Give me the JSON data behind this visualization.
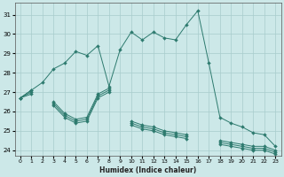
{
  "xlabel": "Humidex (Indice chaleur)",
  "background_color": "#cce8e8",
  "grid_color": "#a8cccc",
  "line_color": "#2d7a6e",
  "x_ticks": [
    0,
    1,
    2,
    3,
    4,
    5,
    6,
    7,
    8,
    9,
    10,
    11,
    12,
    13,
    14,
    15,
    16,
    17,
    18,
    19,
    20,
    21,
    22,
    23
  ],
  "y_ticks": [
    24,
    25,
    26,
    27,
    28,
    29,
    30,
    31
  ],
  "xlim": [
    -0.5,
    23.5
  ],
  "ylim": [
    23.7,
    31.6
  ],
  "series": [
    [
      26.7,
      27.1,
      27.5,
      28.2,
      28.5,
      29.1,
      28.9,
      29.4,
      27.3,
      29.2,
      30.1,
      29.7,
      30.1,
      29.8,
      29.7,
      30.5,
      31.2,
      28.5,
      25.7,
      25.4,
      25.2,
      24.9,
      24.8,
      24.2
    ],
    [
      26.7,
      27.1,
      null,
      26.5,
      25.9,
      25.6,
      25.7,
      26.9,
      27.2,
      null,
      25.5,
      25.3,
      25.2,
      25.0,
      24.9,
      24.8,
      null,
      null,
      24.5,
      24.4,
      24.3,
      24.2,
      24.2,
      24.0
    ],
    [
      26.7,
      27.0,
      null,
      26.4,
      25.8,
      25.5,
      25.6,
      26.8,
      27.1,
      null,
      25.4,
      25.2,
      25.1,
      24.9,
      24.8,
      24.7,
      null,
      null,
      24.4,
      24.3,
      24.2,
      24.1,
      24.1,
      23.9
    ],
    [
      26.7,
      26.9,
      null,
      26.3,
      25.7,
      25.4,
      25.5,
      26.7,
      27.0,
      null,
      25.3,
      25.1,
      25.0,
      24.8,
      24.7,
      24.6,
      null,
      null,
      24.3,
      24.2,
      24.1,
      24.0,
      24.0,
      23.8
    ]
  ]
}
